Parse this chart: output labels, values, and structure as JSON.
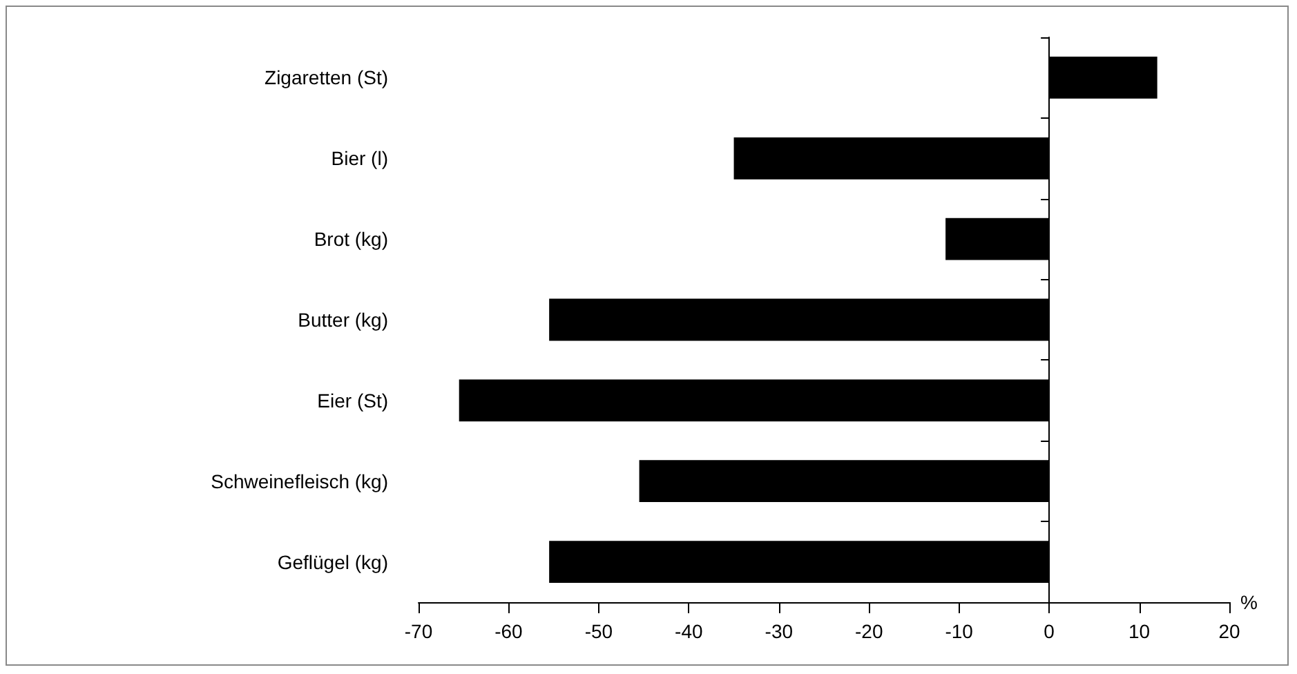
{
  "chart_data": {
    "type": "bar",
    "orientation": "horizontal",
    "xlabel": "%",
    "categories": [
      "Zigaretten (St)",
      "Bier (l)",
      "Brot (kg)",
      "Butter (kg)",
      "Eier (St)",
      "Schweinefleisch (kg)",
      "Geflügel (kg)"
    ],
    "values": [
      12,
      -35,
      -11.5,
      -55.5,
      -65.5,
      -45.5,
      -55.5
    ],
    "color": "#000000",
    "xlim": [
      -70,
      20
    ],
    "xticks": [
      -70,
      -60,
      -50,
      -40,
      -30,
      -20,
      -10,
      0,
      10,
      20
    ]
  }
}
